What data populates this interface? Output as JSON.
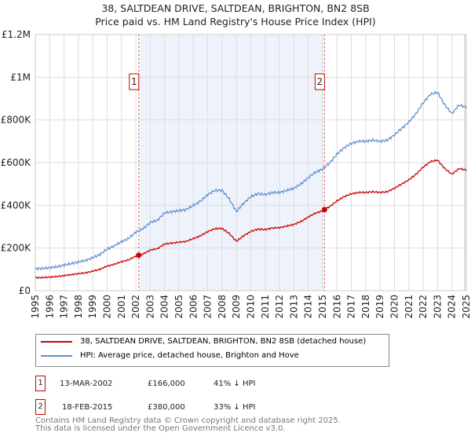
{
  "chart_data": {
    "type": "line",
    "title": "38, SALTDEAN DRIVE, SALTDEAN, BRIGHTON, BN2 8SB",
    "subtitle": "Price paid vs. HM Land Registry's House Price Index (HPI)",
    "xlim": [
      1995,
      2025
    ],
    "ylim": [
      0,
      1200000
    ],
    "x_ticks": [
      "1995",
      "1996",
      "1997",
      "1998",
      "1999",
      "2000",
      "2001",
      "2002",
      "2003",
      "2004",
      "2005",
      "2006",
      "2007",
      "2008",
      "2009",
      "2010",
      "2011",
      "2012",
      "2013",
      "2014",
      "2015",
      "2016",
      "2017",
      "2018",
      "2019",
      "2020",
      "2021",
      "2022",
      "2023",
      "2024",
      "2025"
    ],
    "y_ticks": [
      {
        "v": 0,
        "label": "£0"
      },
      {
        "v": 200000,
        "label": "£200K"
      },
      {
        "v": 400000,
        "label": "£400K"
      },
      {
        "v": 600000,
        "label": "£600K"
      },
      {
        "v": 800000,
        "label": "£800K"
      },
      {
        "v": 1000000,
        "label": "£1M"
      },
      {
        "v": 1200000,
        "label": "£1.2M"
      }
    ],
    "grid": true,
    "series": [
      {
        "name": "38, SALTDEAN DRIVE, SALTDEAN, BRIGHTON, BN2 8SB (detached house)",
        "color": "#cc0000"
      },
      {
        "name": "HPI: Average price, detached house, Brighton and Hove",
        "color": "#6090d0",
        "x": [
          1995,
          1995.5,
          1996,
          1996.5,
          1997,
          1997.5,
          1998,
          1998.5,
          1999,
          1999.5,
          2000,
          2000.5,
          2001,
          2001.5,
          2002,
          2002.5,
          2003,
          2003.5,
          2004,
          2004.5,
          2005,
          2005.5,
          2006,
          2006.5,
          2007,
          2007.5,
          2008,
          2008.5,
          2009,
          2009.5,
          2010,
          2010.5,
          2011,
          2011.5,
          2012,
          2012.5,
          2013,
          2013.5,
          2014,
          2014.5,
          2015,
          2015.5,
          2016,
          2016.5,
          2017,
          2017.5,
          2018,
          2018.5,
          2019,
          2019.5,
          2020,
          2020.5,
          2021,
          2021.5,
          2022,
          2022.5,
          2023,
          2023.5,
          2024,
          2024.5,
          2025
        ],
        "y": [
          103000,
          104000,
          108000,
          112000,
          120000,
          127000,
          135000,
          142000,
          155000,
          170000,
          195000,
          210000,
          230000,
          245000,
          275000,
          290000,
          320000,
          330000,
          365000,
          370000,
          375000,
          380000,
          400000,
          420000,
          450000,
          470000,
          470000,
          430000,
          370000,
          410000,
          440000,
          455000,
          450000,
          460000,
          460000,
          470000,
          480000,
          500000,
          530000,
          555000,
          570000,
          600000,
          640000,
          670000,
          690000,
          700000,
          700000,
          705000,
          700000,
          705000,
          730000,
          760000,
          790000,
          830000,
          880000,
          920000,
          930000,
          870000,
          830000,
          870000,
          860000
        ]
      }
    ],
    "transactions": [
      {
        "id": "1",
        "x": 2002.2,
        "date": "13-MAR-2002",
        "price": "£166,000",
        "price_value": 166000,
        "hpi": "41% ↓ HPI"
      },
      {
        "id": "2",
        "x": 2015.13,
        "date": "18-FEB-2015",
        "price": "£380,000",
        "price_value": 380000,
        "hpi": "33% ↓ HPI"
      }
    ],
    "legend_position": "below"
  },
  "footer": {
    "line1": "Contains HM Land Registry data © Crown copyright and database right 2025.",
    "line2": "This data is licensed under the Open Government Licence v3.0."
  }
}
